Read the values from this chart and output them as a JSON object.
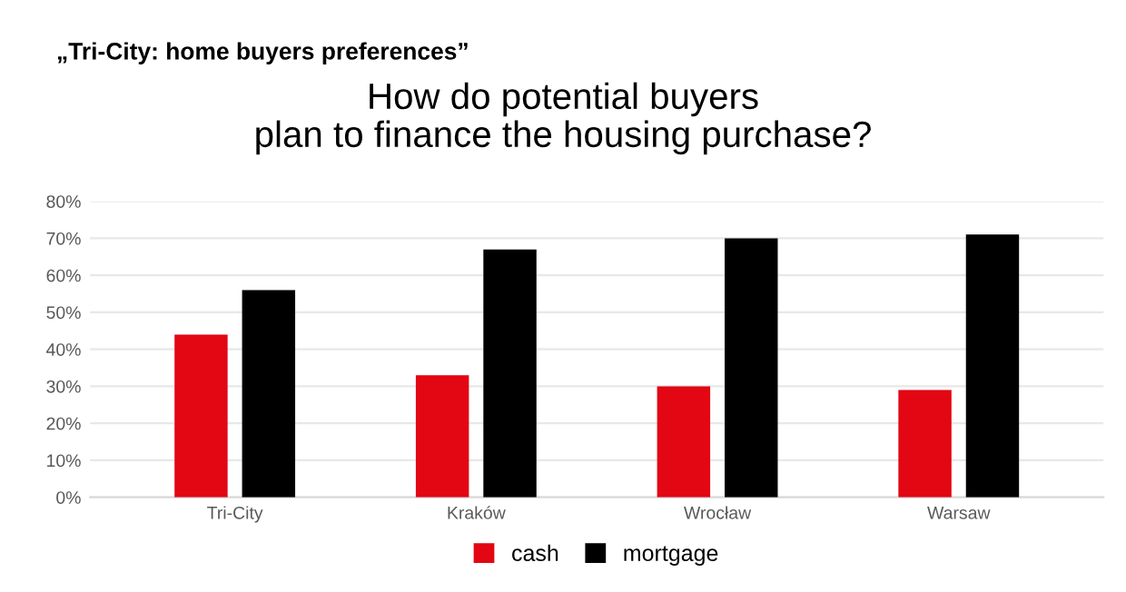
{
  "chart_data": {
    "type": "bar",
    "subtitle": "„Tri-City: home buyers preferences”",
    "title": "How do potential buyers\nplan to finance the housing purchase?",
    "categories": [
      "Tri-City",
      "Kraków",
      "Wrocław",
      "Warsaw"
    ],
    "series": [
      {
        "name": "cash",
        "color": "#e30613",
        "values": [
          44,
          33,
          30,
          29
        ]
      },
      {
        "name": "mortgage",
        "color": "#000000",
        "values": [
          56,
          67,
          70,
          71
        ]
      }
    ],
    "ylim": [
      0,
      80
    ],
    "yticks": [
      {
        "value": 0,
        "label": "0%"
      },
      {
        "value": 10,
        "label": "10%"
      },
      {
        "value": 20,
        "label": "20%"
      },
      {
        "value": 30,
        "label": "30%"
      },
      {
        "value": 40,
        "label": "40%"
      },
      {
        "value": 50,
        "label": "50%"
      },
      {
        "value": 60,
        "label": "60%"
      },
      {
        "value": 70,
        "label": "70%"
      },
      {
        "value": 80,
        "label": "80%"
      }
    ],
    "grid": "y",
    "legend": "bottom"
  }
}
